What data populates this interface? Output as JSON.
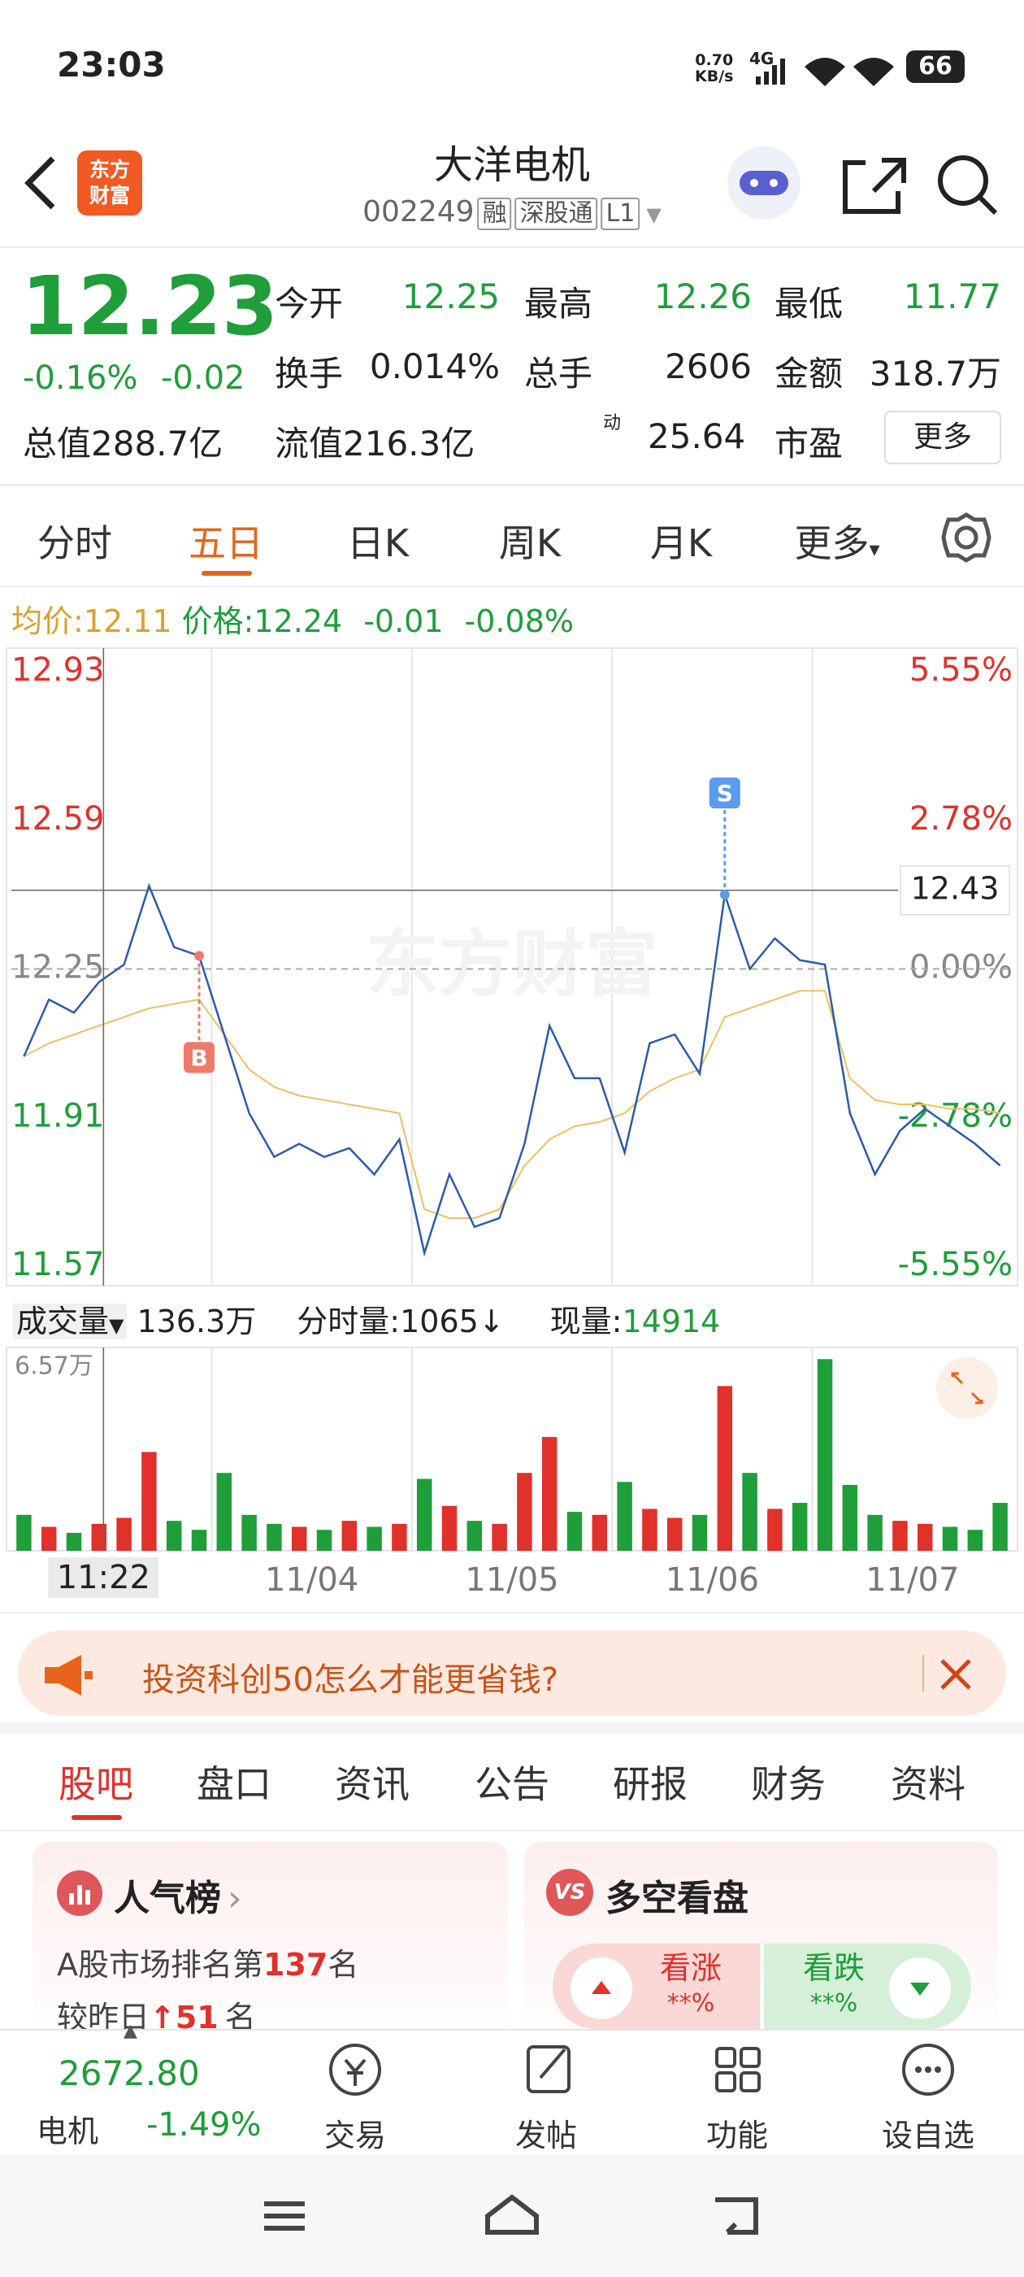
{
  "status_bar": {
    "time": "23:03",
    "net_speed": "0.70",
    "net_unit": "KB/s",
    "network": "4G",
    "battery": "66"
  },
  "header": {
    "logo": [
      "东方",
      "财富"
    ],
    "title": "大洋电机",
    "code": "002249",
    "badges": [
      "融",
      "深股通",
      "L1"
    ]
  },
  "quote": {
    "price": "12.23",
    "change_pct": "-0.16%",
    "change": "-0.02",
    "stats": [
      {
        "label": "今开",
        "value": "12.25"
      },
      {
        "label": "最高",
        "value": "12.26"
      },
      {
        "label": "最低",
        "value": "11.77"
      },
      {
        "label": "换手",
        "value": "0.014%"
      },
      {
        "label": "总手",
        "value": "2606"
      },
      {
        "label": "金额",
        "value": "318.7万"
      },
      {
        "label": "总值",
        "value": "288.7亿"
      },
      {
        "label": "流值",
        "value": "216.3亿"
      },
      {
        "label": "市盈",
        "value": "25.64"
      }
    ],
    "pe_sup": "动",
    "more": "更多"
  },
  "tabs": {
    "items": [
      "分时",
      "五日",
      "日K",
      "周K",
      "月K",
      "更多"
    ]
  },
  "info": {
    "avg_label": "均价:",
    "avg": "12.11",
    "price_label": "价格:",
    "price": "12.24",
    "change": "-0.01",
    "change_pct": "-0.08%"
  },
  "chart": {
    "ylim": [
      11.57,
      12.93
    ],
    "yticks": [
      12.93,
      12.59,
      12.25,
      11.91,
      11.57
    ],
    "right_ticks": [
      "5.55%",
      "2.78%",
      "0.00%",
      "-2.78%",
      "-5.55%"
    ],
    "prev_close": 12.25,
    "crosshair": 12.43,
    "watermark": "东方财富",
    "markers": [
      "B",
      "S"
    ],
    "price": [
      12.05,
      12.18,
      12.15,
      12.22,
      12.26,
      12.44,
      12.3,
      12.28,
      12.1,
      11.92,
      11.82,
      11.85,
      11.82,
      11.84,
      11.78,
      11.86,
      11.6,
      11.78,
      11.66,
      11.68,
      11.85,
      12.12,
      12.0,
      12.0,
      11.83,
      12.08,
      12.1,
      12.01,
      12.42,
      12.25,
      12.32,
      12.27,
      12.26,
      11.92,
      11.78,
      11.88,
      11.93,
      11.89,
      11.85,
      11.8
    ],
    "avg": [
      12.05,
      12.08,
      12.1,
      12.12,
      12.14,
      12.16,
      12.17,
      12.18,
      12.1,
      12.02,
      11.98,
      11.96,
      11.95,
      11.94,
      11.93,
      11.92,
      11.7,
      11.68,
      11.68,
      11.7,
      11.8,
      11.86,
      11.89,
      11.9,
      11.92,
      11.97,
      12.0,
      12.02,
      12.14,
      12.16,
      12.18,
      12.2,
      12.2,
      12.0,
      11.95,
      11.94,
      11.94,
      11.93,
      11.93,
      11.92
    ]
  },
  "volume_header": {
    "label": "成交量",
    "total": "136.3万",
    "tick_label": "分时量:1065↓",
    "current_label": "现量:",
    "current": "14914"
  },
  "volume": {
    "ylim": [
      0,
      6.57
    ],
    "yticks": [
      {
        "value": 6.57,
        "label": "6.57万"
      }
    ],
    "values": [
      1.2,
      0.8,
      0.6,
      0.9,
      1.1,
      3.3,
      1.0,
      0.7,
      2.6,
      1.2,
      0.9,
      0.8,
      0.7,
      1.0,
      0.8,
      0.9,
      2.4,
      1.5,
      1.0,
      0.9,
      2.6,
      3.8,
      1.3,
      1.2,
      2.3,
      1.4,
      1.1,
      1.2,
      5.5,
      2.6,
      1.4,
      1.6,
      6.4,
      2.2,
      1.2,
      1.0,
      0.9,
      0.8,
      0.7,
      1.6
    ]
  },
  "x_axis": {
    "crosshair": "11:22",
    "days": [
      "11/04",
      "11/05",
      "11/06",
      "11/07"
    ]
  },
  "banner": {
    "text": "投资科创50怎么才能更省钱?"
  },
  "sections": {
    "items": [
      "股吧",
      "盘口",
      "资讯",
      "公告",
      "研报",
      "财务",
      "资料"
    ]
  },
  "cards": {
    "popularity": {
      "title": "人气榜",
      "rank_prefix": "A股市场排名第",
      "rank": "137",
      "rank_unit": "名",
      "change_prefix": "较昨日",
      "arrow": "↑",
      "change": "51",
      "change_unit": "名"
    },
    "sentiment": {
      "icon": "VS",
      "title": "多空看盘",
      "up": "看涨",
      "up_pct": "**%",
      "down": "看跌",
      "down_pct": "**%"
    }
  },
  "bottom_bar": {
    "index": "2672.80",
    "index_name": "电机",
    "index_change": "-1.49%",
    "actions": [
      "交易",
      "发帖",
      "功能",
      "设自选"
    ]
  }
}
